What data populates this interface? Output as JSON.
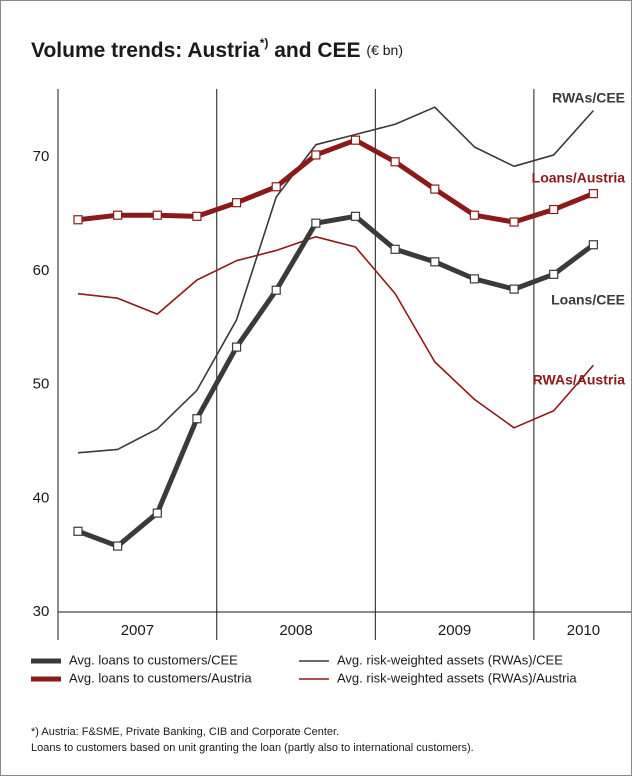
{
  "chart_data": {
    "type": "line",
    "title": "Volume trends: Austria",
    "title_sup": "*)",
    "title_rest": " and CEE",
    "unit": "(€ bn)",
    "categories": [
      null,
      null,
      null,
      null,
      null,
      null,
      null,
      null,
      null,
      null,
      null,
      null,
      null,
      null
    ],
    "year_labels": [
      "2007",
      "2008",
      "2009",
      "2010"
    ],
    "ylim": [
      30,
      76
    ],
    "yticks": [
      30,
      40,
      50,
      60,
      70
    ],
    "grid": false,
    "series": [
      {
        "name": "Avg. loans to customers/CEE",
        "annotation": "Loans/CEE",
        "color": "#3a3a3a",
        "style": "thick",
        "markers": true,
        "values": [
          37.1,
          35.8,
          38.7,
          47.0,
          53.3,
          58.3,
          64.2,
          64.8,
          61.9,
          60.8,
          59.3,
          58.4,
          59.7,
          62.3
        ]
      },
      {
        "name": "Avg. risk-weighted assets (RWAs)/CEE",
        "annotation": "RWAs/CEE",
        "color": "#3a3a3a",
        "style": "thin",
        "markers": false,
        "values": [
          44.0,
          44.3,
          46.1,
          49.5,
          55.7,
          66.5,
          71.1,
          72.0,
          72.9,
          74.4,
          70.9,
          69.2,
          70.2,
          74.1
        ]
      },
      {
        "name": "Avg. loans to customers/Austria",
        "annotation": "Loans/Austria",
        "color": "#8b1a1a",
        "style": "thick",
        "markers": true,
        "values": [
          64.5,
          64.9,
          64.9,
          64.8,
          66.0,
          67.4,
          70.2,
          71.5,
          69.6,
          67.2,
          64.9,
          64.3,
          65.4,
          66.8
        ]
      },
      {
        "name": "Avg. risk-weighted assets (RWAs)/Austria",
        "annotation": "RWAs/Austria",
        "color": "#8b1a1a",
        "style": "thin",
        "markers": false,
        "values": [
          58.0,
          57.6,
          56.2,
          59.2,
          60.9,
          61.8,
          63.0,
          62.1,
          58.0,
          52.0,
          48.7,
          46.2,
          47.7,
          51.7
        ]
      }
    ],
    "footnotes": [
      "*) Austria: F&SME, Private Banking, CIB and Corporate Center.",
      "Loans to customers based on unit granting the loan (partly also to international customers)."
    ]
  }
}
